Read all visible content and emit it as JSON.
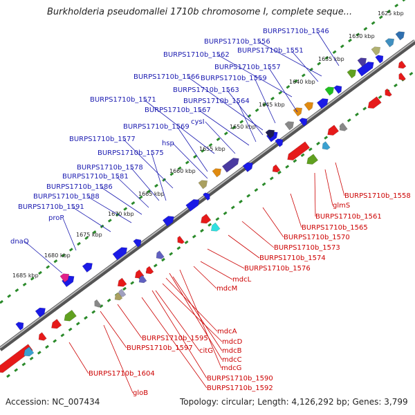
{
  "title": "Burkholderia pseudomallei 1710b chromosome I, complete seque...",
  "footer": {
    "accession": "Accession: NC_007434",
    "summary": "Topology: circular; Length: 4,126,292 bp; Genes: 3,799"
  },
  "colors": {
    "forward_label": "#1a1ab0",
    "reverse_label": "#cc0000",
    "backbone": "#888888",
    "tick": "#2a8a2a",
    "forward_gene": "#1a1ae6",
    "reverse_gene": "#e61a1a"
  },
  "scale_labels": [
    "1625 kbp",
    "1630 kbp",
    "1635 kbp",
    "1640 kbp",
    "1645 kbp",
    "1650 kbp",
    "1655 kbp",
    "1660 kbp",
    "1665 kbp",
    "1670 kbp",
    "1675 kbp",
    "1680 kbp",
    "1685 kbp"
  ],
  "forward_labels": [
    "BURPS1710b_1546",
    "BURPS1710b_1556",
    "BURPS1710b_1551",
    "BURPS1710b_1562",
    "BURPS1710b_1557",
    "BURPS1710b_1566",
    "BURPS1710b_1559",
    "BURPS1710b_1563",
    "BURPS1710b_1571",
    "BURPS1710b_1564",
    "BURPS1710b_1567",
    "cysI",
    "BURPS1710b_1569",
    "BURPS1710b_1577",
    "hsp",
    "BURPS1710b_1575",
    "BURPS1710b_1578",
    "BURPS1710b_1581",
    "BURPS1710b_1586",
    "BURPS1710b_1588",
    "BURPS1710b_1591",
    "proP",
    "dnaQ"
  ],
  "reverse_labels": [
    "BURPS1710b_1558",
    "glmS",
    "BURPS1710b_1561",
    "BURPS1710b_1565",
    "BURPS1710b_1570",
    "BURPS1710b_1573",
    "BURPS1710b_1574",
    "BURPS1710b_1576",
    "mdcL",
    "mdcM",
    "mdcA",
    "BURPS1710b_1595",
    "mdcD",
    "BURPS1710b_1597",
    "citG",
    "mdcB",
    "mdcC",
    "mdcG",
    "BURPS1710b_1590",
    "BURPS1710b_1592",
    "BURPS1710b_1604",
    "gloB"
  ]
}
